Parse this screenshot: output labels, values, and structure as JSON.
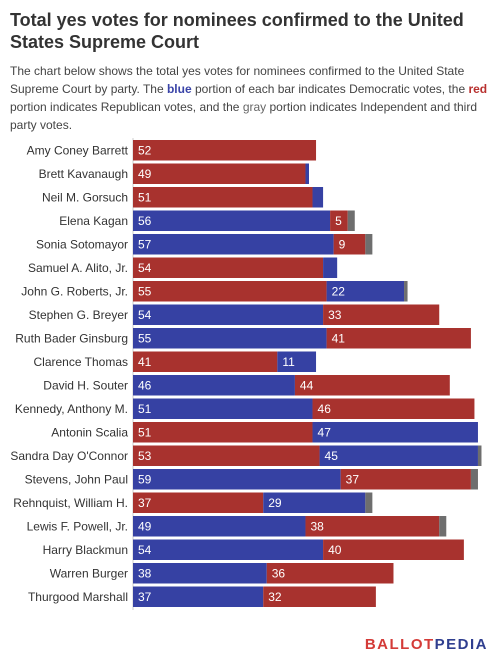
{
  "header": {
    "title": "Total yes votes for nominees confirmed to the United States Supreme Court",
    "desc_1": "The chart below shows the total yes votes for nominees confirmed to the United State Supreme Court by party. The ",
    "kw_blue": "blue",
    "desc_2": " portion of each bar indicates Democratic votes, the ",
    "kw_red": "red",
    "desc_3": " portion indicates Republican votes, and the ",
    "kw_gray": "gray",
    "desc_4": " portion indicates Independent and third party votes."
  },
  "logo": {
    "part1": "BALLOT",
    "part2": "PEDIA"
  },
  "colors": {
    "democratic": "#3641a3",
    "republican": "#a8322e",
    "other": "#6e6e6e"
  },
  "chart_data": {
    "type": "bar",
    "orientation": "horizontal",
    "stacked": true,
    "categories": [
      "Amy Coney Barrett",
      "Brett Kavanaugh",
      "Neil M. Gorsuch",
      "Elena Kagan",
      "Sonia Sotomayor",
      "Samuel A. Alito, Jr.",
      "John G. Roberts, Jr.",
      "Stephen G. Breyer",
      "Ruth Bader Ginsburg",
      "Clarence Thomas",
      "David H. Souter",
      "Kennedy, Anthony M.",
      "Antonin Scalia",
      "Sandra Day O'Connor",
      "Stevens, John Paul",
      "Rehnquist, William H.",
      "Lewis F. Powell, Jr.",
      "Harry Blackmun",
      "Warren Burger",
      "Thurgood Marshall"
    ],
    "bars": [
      {
        "segments": [
          {
            "party": "republican",
            "value": 52,
            "label": "52"
          }
        ]
      },
      {
        "segments": [
          {
            "party": "republican",
            "value": 49,
            "label": "49"
          },
          {
            "party": "democratic",
            "value": 1,
            "label": ""
          }
        ]
      },
      {
        "segments": [
          {
            "party": "republican",
            "value": 51,
            "label": "51"
          },
          {
            "party": "democratic",
            "value": 3,
            "label": ""
          }
        ]
      },
      {
        "segments": [
          {
            "party": "democratic",
            "value": 56,
            "label": "56"
          },
          {
            "party": "republican",
            "value": 5,
            "label": "5"
          },
          {
            "party": "other",
            "value": 2,
            "label": ""
          }
        ]
      },
      {
        "segments": [
          {
            "party": "democratic",
            "value": 57,
            "label": "57"
          },
          {
            "party": "republican",
            "value": 9,
            "label": "9"
          },
          {
            "party": "other",
            "value": 2,
            "label": ""
          }
        ]
      },
      {
        "segments": [
          {
            "party": "republican",
            "value": 54,
            "label": "54"
          },
          {
            "party": "democratic",
            "value": 4,
            "label": ""
          }
        ]
      },
      {
        "segments": [
          {
            "party": "republican",
            "value": 55,
            "label": "55"
          },
          {
            "party": "democratic",
            "value": 22,
            "label": "22"
          },
          {
            "party": "other",
            "value": 1,
            "label": ""
          }
        ]
      },
      {
        "segments": [
          {
            "party": "democratic",
            "value": 54,
            "label": "54"
          },
          {
            "party": "republican",
            "value": 33,
            "label": "33"
          }
        ]
      },
      {
        "segments": [
          {
            "party": "democratic",
            "value": 55,
            "label": "55"
          },
          {
            "party": "republican",
            "value": 41,
            "label": "41"
          }
        ]
      },
      {
        "segments": [
          {
            "party": "republican",
            "value": 41,
            "label": "41"
          },
          {
            "party": "democratic",
            "value": 11,
            "label": "11"
          }
        ]
      },
      {
        "segments": [
          {
            "party": "democratic",
            "value": 46,
            "label": "46"
          },
          {
            "party": "republican",
            "value": 44,
            "label": "44"
          }
        ]
      },
      {
        "segments": [
          {
            "party": "democratic",
            "value": 51,
            "label": "51"
          },
          {
            "party": "republican",
            "value": 46,
            "label": "46"
          }
        ]
      },
      {
        "segments": [
          {
            "party": "republican",
            "value": 51,
            "label": "51"
          },
          {
            "party": "democratic",
            "value": 47,
            "label": "47"
          }
        ]
      },
      {
        "segments": [
          {
            "party": "republican",
            "value": 53,
            "label": "53"
          },
          {
            "party": "democratic",
            "value": 45,
            "label": "45"
          },
          {
            "party": "other",
            "value": 1,
            "label": ""
          }
        ]
      },
      {
        "segments": [
          {
            "party": "democratic",
            "value": 59,
            "label": "59"
          },
          {
            "party": "republican",
            "value": 37,
            "label": "37"
          },
          {
            "party": "other",
            "value": 2,
            "label": ""
          }
        ]
      },
      {
        "segments": [
          {
            "party": "republican",
            "value": 37,
            "label": "37"
          },
          {
            "party": "democratic",
            "value": 29,
            "label": "29"
          },
          {
            "party": "other",
            "value": 2,
            "label": ""
          }
        ]
      },
      {
        "segments": [
          {
            "party": "democratic",
            "value": 49,
            "label": "49"
          },
          {
            "party": "republican",
            "value": 38,
            "label": "38"
          },
          {
            "party": "other",
            "value": 2,
            "label": ""
          }
        ]
      },
      {
        "segments": [
          {
            "party": "democratic",
            "value": 54,
            "label": "54"
          },
          {
            "party": "republican",
            "value": 40,
            "label": "40"
          }
        ]
      },
      {
        "segments": [
          {
            "party": "democratic",
            "value": 38,
            "label": "38"
          },
          {
            "party": "republican",
            "value": 36,
            "label": "36"
          }
        ]
      },
      {
        "segments": [
          {
            "party": "democratic",
            "value": 37,
            "label": "37"
          },
          {
            "party": "republican",
            "value": 32,
            "label": "32"
          }
        ]
      }
    ],
    "xlim": [
      0,
      100
    ],
    "grid": false,
    "legend": "none"
  }
}
